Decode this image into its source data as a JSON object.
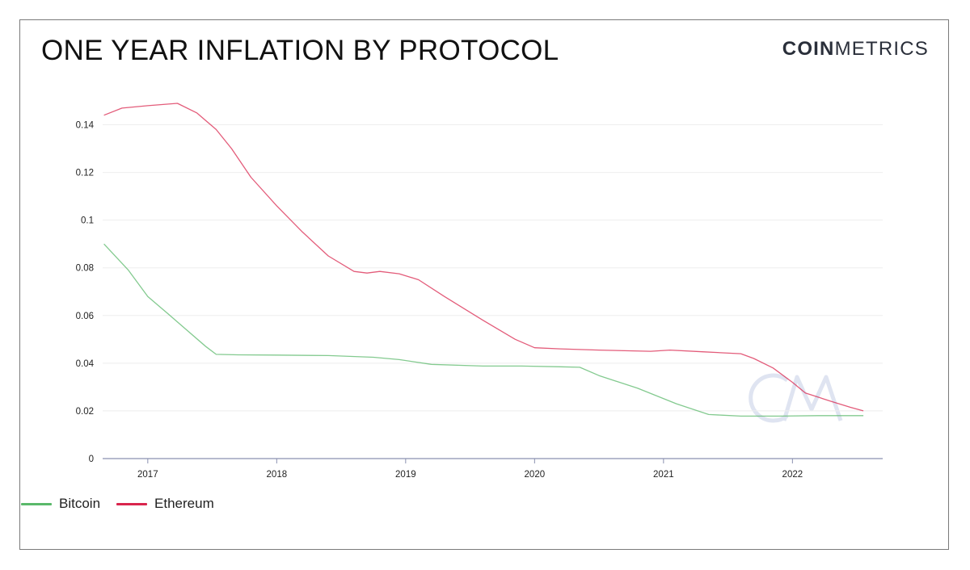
{
  "header": {
    "title": "ONE YEAR INFLATION BY PROTOCOL",
    "brand_bold": "COIN",
    "brand_light": "METRICS"
  },
  "colors": {
    "bitcoin": "#5ab86a",
    "ethereum": "#d9254d",
    "grid": "#eeeeee",
    "axis": "#8a90b0",
    "tick_text": "#222222",
    "watermark": "#dfe4f1"
  },
  "chart_data": {
    "type": "line",
    "title": "ONE YEAR INFLATION BY PROTOCOL",
    "xlabel": "",
    "ylabel": "",
    "xlim": [
      2016.65,
      2022.7
    ],
    "ylim": [
      0,
      0.15
    ],
    "y_ticks": [
      0,
      0.02,
      0.04,
      0.06,
      0.08,
      0.1,
      0.12,
      0.14
    ],
    "y_tick_labels": [
      "0",
      "0.02",
      "0.04",
      "0.06",
      "0.08",
      "0.1",
      "0.12",
      "0.14"
    ],
    "x_ticks": [
      2017,
      2018,
      2019,
      2020,
      2021,
      2022
    ],
    "x_tick_labels": [
      "2017",
      "2018",
      "2019",
      "2020",
      "2021",
      "2022"
    ],
    "grid": true,
    "legend_position": "bottom-left",
    "series": [
      {
        "name": "Bitcoin",
        "color_key": "bitcoin",
        "x": [
          2016.66,
          2016.85,
          2017.0,
          2017.15,
          2017.3,
          2017.45,
          2017.53,
          2017.7,
          2018.0,
          2018.4,
          2018.75,
          2018.95,
          2019.2,
          2019.6,
          2019.9,
          2020.2,
          2020.35,
          2020.5,
          2020.8,
          2021.1,
          2021.35,
          2021.45,
          2021.6,
          2021.9,
          2022.2,
          2022.55
        ],
        "y": [
          0.09,
          0.079,
          0.068,
          0.061,
          0.054,
          0.047,
          0.0437,
          0.0435,
          0.0434,
          0.0432,
          0.0425,
          0.0415,
          0.0395,
          0.0388,
          0.0388,
          0.0385,
          0.0383,
          0.0348,
          0.0295,
          0.023,
          0.0185,
          0.0182,
          0.0178,
          0.0178,
          0.018,
          0.018
        ]
      },
      {
        "name": "Ethereum",
        "color_key": "ethereum",
        "x": [
          2016.66,
          2016.8,
          2017.0,
          2017.23,
          2017.38,
          2017.53,
          2017.65,
          2017.8,
          2018.0,
          2018.2,
          2018.4,
          2018.6,
          2018.7,
          2018.8,
          2018.95,
          2019.1,
          2019.3,
          2019.6,
          2019.85,
          2020.0,
          2020.2,
          2020.5,
          2020.9,
          2021.05,
          2021.3,
          2021.6,
          2021.7,
          2021.85,
          2022.0,
          2022.1,
          2022.3,
          2022.45,
          2022.55
        ],
        "y": [
          0.144,
          0.147,
          0.148,
          0.149,
          0.145,
          0.138,
          0.13,
          0.118,
          0.106,
          0.095,
          0.085,
          0.0785,
          0.0778,
          0.0785,
          0.0775,
          0.075,
          0.068,
          0.058,
          0.05,
          0.0465,
          0.046,
          0.0455,
          0.045,
          0.0455,
          0.0448,
          0.044,
          0.042,
          0.038,
          0.032,
          0.0275,
          0.024,
          0.0215,
          0.02
        ]
      }
    ]
  }
}
